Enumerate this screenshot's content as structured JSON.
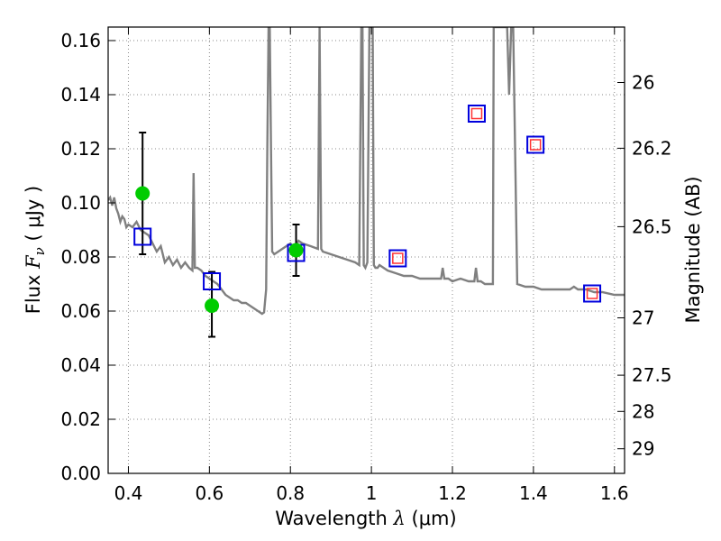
{
  "chart_data": {
    "type": "scatter",
    "xlabel_prefix": "Wavelength  ",
    "xlabel_lambda": "λ",
    "xlabel_unit": " (μm)",
    "ylabel_prefix": "Flux  ",
    "ylabel_symbol": "F",
    "ylabel_sub": "ν",
    "ylabel_unit": "  ( μJy )",
    "y2label": "Magnitude (AB)",
    "xlim": [
      0.35,
      1.625
    ],
    "ylim": [
      0.0,
      0.165
    ],
    "grid": true,
    "x_ticks": [
      0.4,
      0.6,
      0.8,
      1.0,
      1.2,
      1.4,
      1.6
    ],
    "x_tick_labels": [
      "0.4",
      "0.6",
      "0.8",
      "1",
      "1.2",
      "1.4",
      "1.6"
    ],
    "y_ticks": [
      0.0,
      0.02,
      0.04,
      0.06,
      0.08,
      0.1,
      0.12,
      0.14,
      0.16
    ],
    "y_tick_labels": [
      "0.00",
      "0.02",
      "0.04",
      "0.06",
      "0.08",
      "0.10",
      "0.12",
      "0.14",
      "0.16"
    ],
    "y2_ticks": [
      {
        "label": "26",
        "flux": 0.1445
      },
      {
        "label": "26.2",
        "flux": 0.1202
      },
      {
        "label": "26.5",
        "flux": 0.0912
      },
      {
        "label": "27",
        "flux": 0.0575
      },
      {
        "label": "27.5",
        "flux": 0.0363
      },
      {
        "label": "28",
        "flux": 0.0229
      },
      {
        "label": "29",
        "flux": 0.0091
      }
    ],
    "observed_photometry": [
      {
        "x": 0.435,
        "y": 0.1035,
        "yerr_low": 0.0225,
        "yerr_high": 0.0225
      },
      {
        "x": 0.606,
        "y": 0.062,
        "yerr_low": 0.0115,
        "yerr_high": 0.0125
      },
      {
        "x": 0.814,
        "y": 0.0825,
        "yerr_low": 0.0095,
        "yerr_high": 0.0095
      }
    ],
    "model_photometry": [
      {
        "x": 0.435,
        "y": 0.0875,
        "matched": false
      },
      {
        "x": 0.606,
        "y": 0.071,
        "matched": false
      },
      {
        "x": 0.814,
        "y": 0.0815,
        "matched": false
      },
      {
        "x": 1.065,
        "y": 0.0795,
        "matched": true
      },
      {
        "x": 1.26,
        "y": 0.133,
        "matched": true
      },
      {
        "x": 1.405,
        "y": 0.1215,
        "matched": true
      },
      {
        "x": 1.545,
        "y": 0.0665,
        "matched": true
      }
    ],
    "model_spectrum": {
      "x": [
        0.35,
        0.355,
        0.36,
        0.365,
        0.37,
        0.375,
        0.38,
        0.385,
        0.39,
        0.395,
        0.4,
        0.41,
        0.42,
        0.43,
        0.44,
        0.45,
        0.46,
        0.47,
        0.48,
        0.49,
        0.5,
        0.51,
        0.52,
        0.53,
        0.54,
        0.55,
        0.558,
        0.561,
        0.564,
        0.57,
        0.58,
        0.59,
        0.6,
        0.61,
        0.62,
        0.63,
        0.64,
        0.65,
        0.66,
        0.67,
        0.68,
        0.69,
        0.7,
        0.71,
        0.72,
        0.73,
        0.735,
        0.74,
        0.743,
        0.746,
        0.749,
        0.752,
        0.755,
        0.76,
        0.77,
        0.78,
        0.79,
        0.8,
        0.81,
        0.82,
        0.83,
        0.85,
        0.868,
        0.872,
        0.876,
        0.88,
        0.9,
        0.92,
        0.94,
        0.96,
        0.97,
        0.975,
        0.978,
        0.981,
        0.985,
        0.99,
        0.995,
        1.0,
        1.003,
        1.006,
        1.01,
        1.015,
        1.02,
        1.04,
        1.06,
        1.08,
        1.1,
        1.12,
        1.14,
        1.16,
        1.172,
        1.176,
        1.18,
        1.19,
        1.2,
        1.22,
        1.24,
        1.25,
        1.254,
        1.258,
        1.262,
        1.27,
        1.28,
        1.3,
        1.302,
        1.305,
        1.31,
        1.32,
        1.33,
        1.335,
        1.34,
        1.345,
        1.35,
        1.36,
        1.38,
        1.4,
        1.42,
        1.44,
        1.46,
        1.49,
        1.5,
        1.51,
        1.53,
        1.55,
        1.57,
        1.6,
        1.625
      ],
      "y": [
        0.101,
        0.102,
        0.099,
        0.102,
        0.098,
        0.096,
        0.093,
        0.095,
        0.094,
        0.091,
        0.092,
        0.091,
        0.093,
        0.09,
        0.089,
        0.088,
        0.085,
        0.082,
        0.084,
        0.078,
        0.08,
        0.077,
        0.079,
        0.076,
        0.078,
        0.076,
        0.075,
        0.111,
        0.076,
        0.076,
        0.075,
        0.073,
        0.072,
        0.071,
        0.07,
        0.068,
        0.066,
        0.065,
        0.064,
        0.064,
        0.063,
        0.063,
        0.062,
        0.061,
        0.06,
        0.059,
        0.0595,
        0.068,
        0.12,
        0.165,
        0.165,
        0.12,
        0.082,
        0.081,
        0.082,
        0.083,
        0.084,
        0.085,
        0.083,
        0.086,
        0.085,
        0.084,
        0.083,
        0.165,
        0.083,
        0.082,
        0.081,
        0.08,
        0.079,
        0.078,
        0.077,
        0.165,
        0.165,
        0.077,
        0.076,
        0.078,
        0.165,
        0.165,
        0.165,
        0.077,
        0.076,
        0.076,
        0.077,
        0.075,
        0.074,
        0.073,
        0.073,
        0.072,
        0.072,
        0.072,
        0.072,
        0.076,
        0.072,
        0.072,
        0.071,
        0.072,
        0.071,
        0.071,
        0.071,
        0.076,
        0.071,
        0.071,
        0.07,
        0.07,
        0.165,
        0.165,
        0.165,
        0.165,
        0.165,
        0.165,
        0.14,
        0.165,
        0.165,
        0.07,
        0.069,
        0.069,
        0.068,
        0.068,
        0.068,
        0.068,
        0.069,
        0.068,
        0.068,
        0.067,
        0.067,
        0.066,
        0.066
      ],
      "color": "#808080"
    },
    "colors": {
      "spectrum": "#808080",
      "observed": "#00cc00",
      "model_box": "#0000dd",
      "model_inner": "#ff3333",
      "grid": "#888888"
    }
  }
}
